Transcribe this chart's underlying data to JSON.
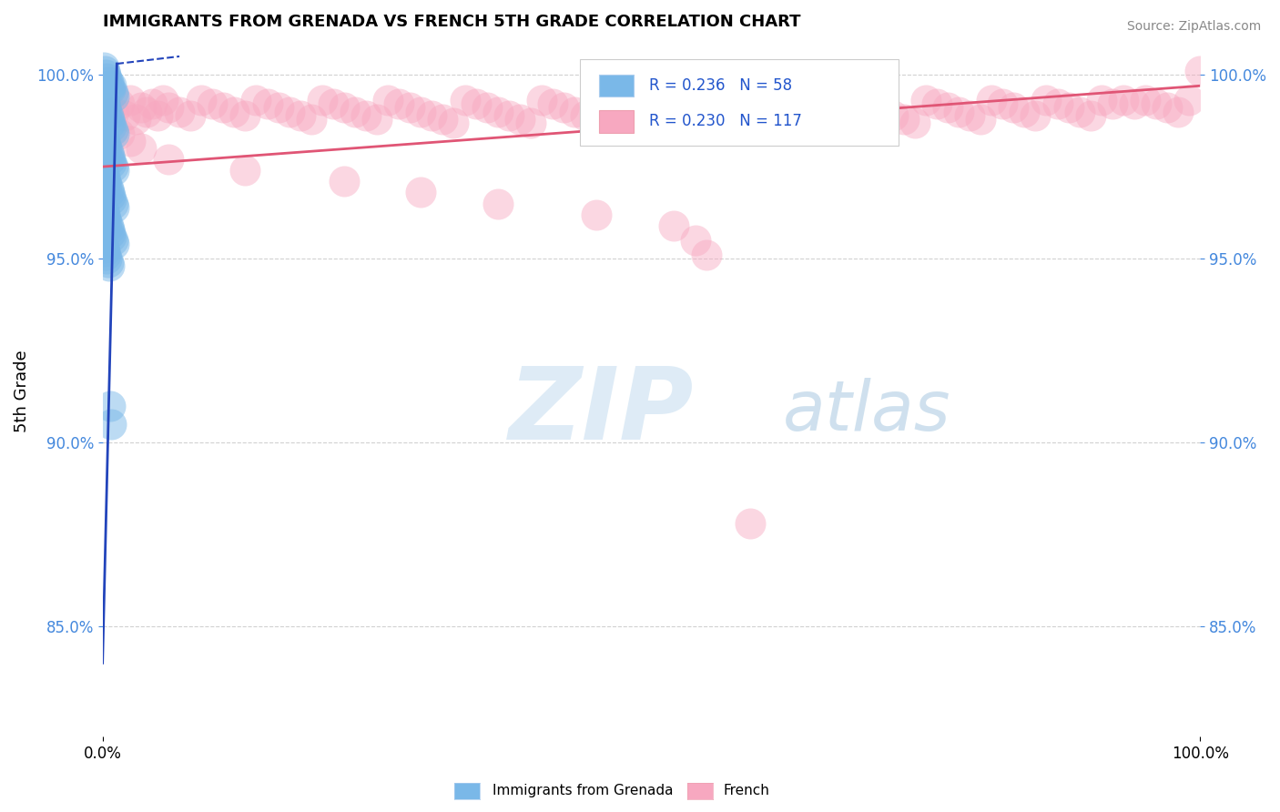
{
  "title": "IMMIGRANTS FROM GRENADA VS FRENCH 5TH GRADE CORRELATION CHART",
  "source": "Source: ZipAtlas.com",
  "ylabel": "5th Grade",
  "xlim": [
    0.0,
    1.0
  ],
  "ylim": [
    0.82,
    1.008
  ],
  "y_tick_values": [
    0.85,
    0.9,
    0.95,
    1.0
  ],
  "y_tick_labels": [
    "85.0%",
    "90.0%",
    "95.0%",
    "100.0%"
  ],
  "x_tick_labels": [
    "0.0%",
    "100.0%"
  ],
  "watermark_zip": "ZIP",
  "watermark_atlas": "atlas",
  "legend_r1": "R = 0.236",
  "legend_n1": "N = 58",
  "legend_r2": "R = 0.230",
  "legend_n2": "N = 117",
  "legend_label1": "Immigrants from Grenada",
  "legend_label2": "French",
  "color_blue": "#7ab8e8",
  "color_pink": "#f7a8c0",
  "trendline_blue": "#2244bb",
  "trendline_pink": "#e05575",
  "grid_color": "#cccccc",
  "background": "#ffffff",
  "blue_color_tick": "#4488dd",
  "blue_x": [
    0.001,
    0.002,
    0.003,
    0.004,
    0.005,
    0.006,
    0.007,
    0.008,
    0.009,
    0.01,
    0.001,
    0.002,
    0.003,
    0.004,
    0.005,
    0.006,
    0.007,
    0.008,
    0.009,
    0.01,
    0.001,
    0.002,
    0.003,
    0.004,
    0.005,
    0.006,
    0.007,
    0.008,
    0.009,
    0.01,
    0.001,
    0.002,
    0.003,
    0.004,
    0.005,
    0.006,
    0.007,
    0.008,
    0.009,
    0.01,
    0.001,
    0.002,
    0.003,
    0.004,
    0.005,
    0.006,
    0.007,
    0.008,
    0.009,
    0.01,
    0.001,
    0.002,
    0.003,
    0.004,
    0.005,
    0.006,
    0.007,
    0.008
  ],
  "blue_y": [
    1.002,
    1.001,
    1.0,
    0.999,
    0.998,
    0.997,
    0.996,
    0.997,
    0.995,
    0.994,
    0.993,
    0.992,
    0.991,
    0.99,
    0.989,
    0.988,
    0.987,
    0.986,
    0.985,
    0.984,
    0.983,
    0.982,
    0.981,
    0.98,
    0.979,
    0.978,
    0.977,
    0.976,
    0.975,
    0.974,
    0.973,
    0.972,
    0.971,
    0.97,
    0.969,
    0.968,
    0.967,
    0.966,
    0.965,
    0.964,
    0.963,
    0.962,
    0.961,
    0.96,
    0.959,
    0.958,
    0.957,
    0.956,
    0.955,
    0.954,
    0.953,
    0.952,
    0.951,
    0.95,
    0.949,
    0.948,
    0.91,
    0.905
  ],
  "pink_x": [
    0.005,
    0.01,
    0.015,
    0.02,
    0.025,
    0.03,
    0.035,
    0.04,
    0.045,
    0.05,
    0.055,
    0.06,
    0.07,
    0.08,
    0.09,
    0.1,
    0.11,
    0.12,
    0.13,
    0.14,
    0.15,
    0.16,
    0.17,
    0.18,
    0.19,
    0.2,
    0.21,
    0.22,
    0.23,
    0.24,
    0.25,
    0.26,
    0.27,
    0.28,
    0.29,
    0.3,
    0.31,
    0.32,
    0.33,
    0.34,
    0.35,
    0.36,
    0.37,
    0.38,
    0.39,
    0.4,
    0.41,
    0.42,
    0.43,
    0.44,
    0.45,
    0.46,
    0.47,
    0.48,
    0.49,
    0.5,
    0.51,
    0.52,
    0.53,
    0.54,
    0.55,
    0.56,
    0.57,
    0.58,
    0.59,
    0.6,
    0.61,
    0.62,
    0.63,
    0.64,
    0.65,
    0.66,
    0.67,
    0.68,
    0.69,
    0.7,
    0.71,
    0.72,
    0.73,
    0.74,
    0.75,
    0.76,
    0.77,
    0.78,
    0.79,
    0.8,
    0.81,
    0.82,
    0.83,
    0.84,
    0.85,
    0.86,
    0.87,
    0.88,
    0.89,
    0.9,
    0.91,
    0.92,
    0.93,
    0.94,
    0.95,
    0.96,
    0.97,
    0.98,
    0.99,
    1.0,
    0.015,
    0.025,
    0.035,
    0.06,
    0.13,
    0.22,
    0.29,
    0.36,
    0.45,
    0.52,
    0.54,
    0.55,
    0.59
  ],
  "pink_y": [
    0.991,
    0.99,
    0.992,
    0.989,
    0.993,
    0.988,
    0.991,
    0.99,
    0.992,
    0.989,
    0.993,
    0.991,
    0.99,
    0.989,
    0.993,
    0.992,
    0.991,
    0.99,
    0.989,
    0.993,
    0.992,
    0.991,
    0.99,
    0.989,
    0.988,
    0.993,
    0.992,
    0.991,
    0.99,
    0.989,
    0.988,
    0.993,
    0.992,
    0.991,
    0.99,
    0.989,
    0.988,
    0.987,
    0.993,
    0.992,
    0.991,
    0.99,
    0.989,
    0.988,
    0.987,
    0.993,
    0.992,
    0.991,
    0.99,
    0.989,
    0.988,
    0.987,
    0.993,
    0.992,
    0.991,
    0.99,
    0.989,
    0.988,
    0.987,
    0.993,
    0.992,
    0.991,
    0.99,
    0.989,
    0.988,
    0.987,
    0.993,
    0.992,
    0.991,
    0.99,
    0.989,
    0.988,
    0.987,
    0.993,
    0.992,
    0.991,
    0.99,
    0.989,
    0.988,
    0.987,
    0.993,
    0.992,
    0.991,
    0.99,
    0.989,
    0.988,
    0.993,
    0.992,
    0.991,
    0.99,
    0.989,
    0.993,
    0.992,
    0.991,
    0.99,
    0.989,
    0.993,
    0.992,
    0.993,
    0.992,
    0.993,
    0.992,
    0.991,
    0.99,
    0.993,
    1.001,
    0.984,
    0.982,
    0.98,
    0.977,
    0.974,
    0.971,
    0.968,
    0.965,
    0.962,
    0.959,
    0.955,
    0.951,
    0.878
  ],
  "pink_trendline_x": [
    0.0,
    1.0
  ],
  "pink_trendline_y": [
    0.975,
    0.997
  ]
}
